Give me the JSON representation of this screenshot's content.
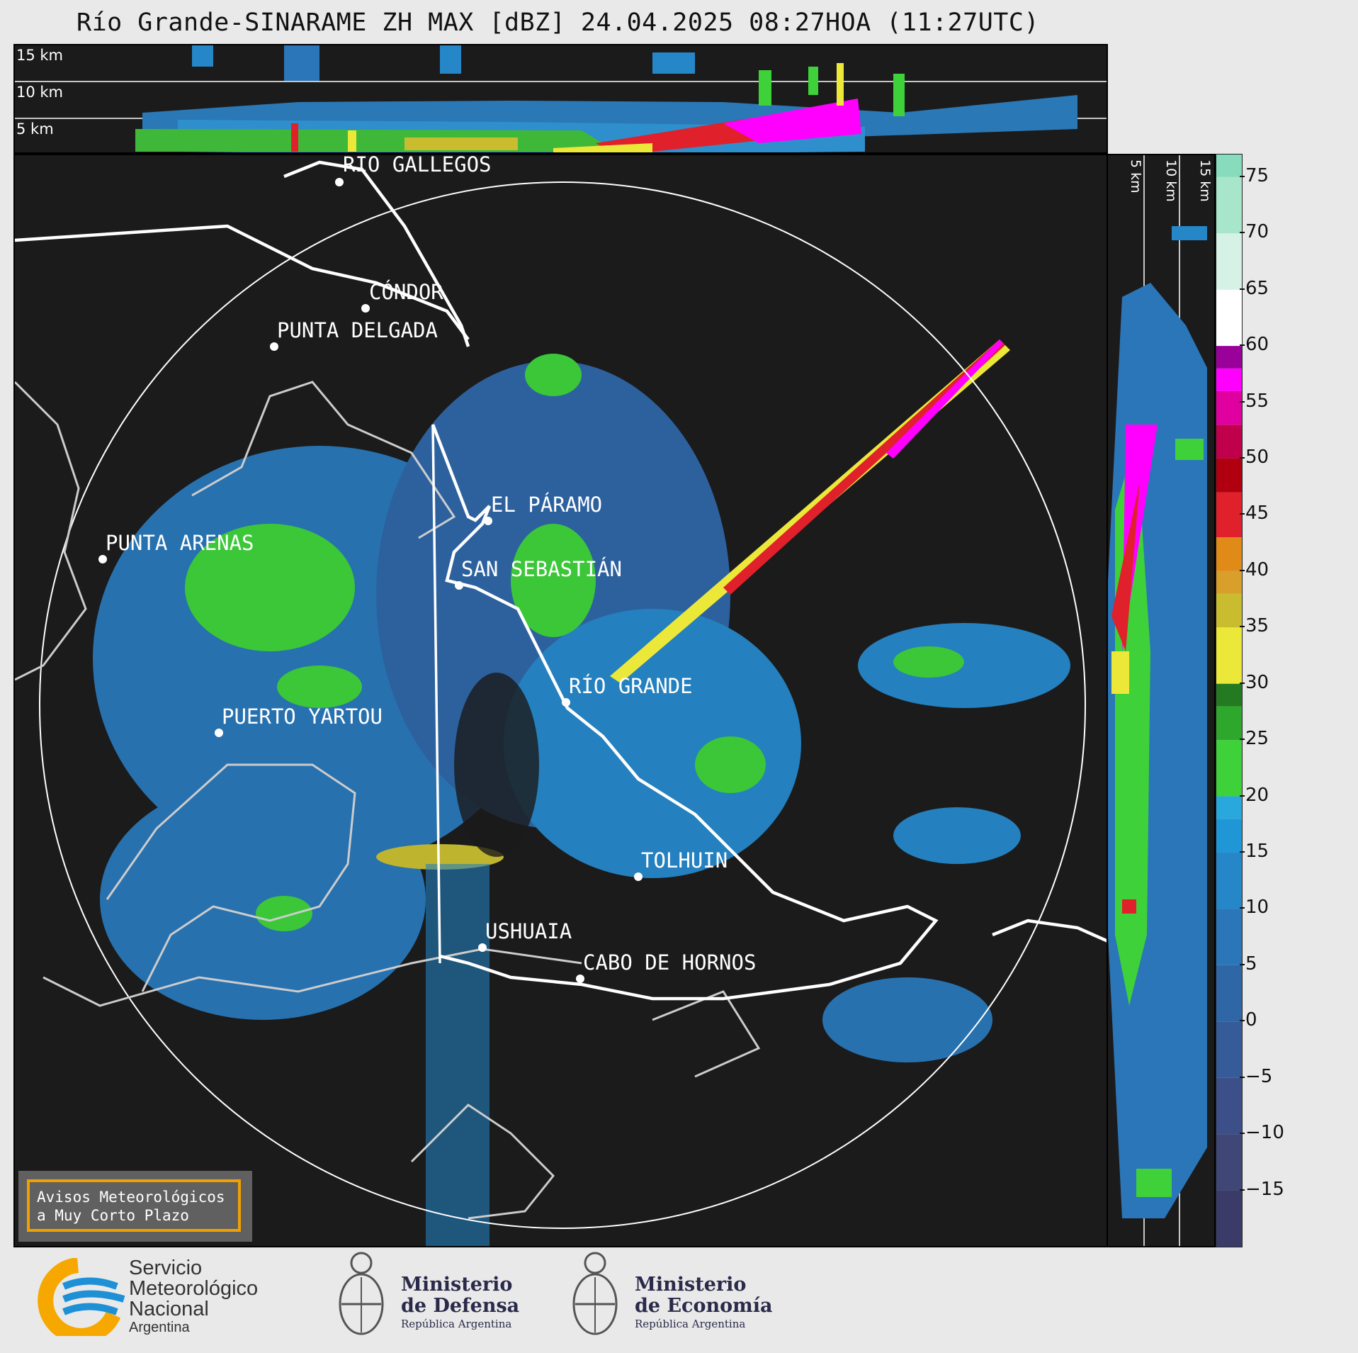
{
  "title": "Río Grande-SINARAME ZH MAX [dBZ] 24.04.2025 08:27HOA (11:27UTC)",
  "top_panel": {
    "height_labels": [
      "15 km",
      "10 km",
      "5 km"
    ]
  },
  "side_panel": {
    "height_labels": [
      "5 km",
      "10 km",
      "15 km"
    ]
  },
  "colorbar": {
    "ticks": [
      "75",
      "70",
      "65",
      "60",
      "55",
      "50",
      "45",
      "40",
      "35",
      "30",
      "25",
      "20",
      "15",
      "10",
      "5",
      "0",
      "−5",
      "−10",
      "−15"
    ],
    "colors": {
      "-20": "#3b3b6a",
      "-15": "#3f4777",
      "-10": "#3c4f88",
      "-5": "#355b98",
      "0": "#2e66a6",
      "5": "#2a76b8",
      "10": "#2586c8",
      "15": "#1f97d6",
      "18": "#29a8de",
      "20": "#3ed13a",
      "25": "#2ea82c",
      "28": "#237a21",
      "30": "#ece83a",
      "35": "#c9bd2f",
      "38": "#d8a02a",
      "40": "#e08a18",
      "43": "#e0202a",
      "47": "#b00010",
      "50": "#c0004a",
      "53": "#e000a0",
      "56": "#ff00ff",
      "58": "#9a009a",
      "60": "#ffffff",
      "65": "#d6f1e6",
      "70": "#a8e6cc",
      "75": "#86dcbd"
    }
  },
  "places": [
    {
      "name": "RÍO GALLEGOS"
    },
    {
      "name": "CÓNDOR"
    },
    {
      "name": "PUNTA DELGADA"
    },
    {
      "name": "EL PÁRAMO"
    },
    {
      "name": "PUNTA ARENAS"
    },
    {
      "name": "SAN SEBASTIÁN"
    },
    {
      "name": "RÍO GRANDE"
    },
    {
      "name": "PUERTO YARTOU"
    },
    {
      "name": "TOLHUIN"
    },
    {
      "name": "USHUAIA"
    },
    {
      "name": "CABO DE HORNOS"
    }
  ],
  "notice": {
    "line1": "Avisos Meteorológicos",
    "line2": "a Muy Corto Plazo"
  },
  "logos": {
    "smn": {
      "line1": "Servicio",
      "line2": "Meteorológico",
      "line3": "Nacional",
      "line4": "Argentina"
    },
    "defensa": {
      "line1": "Ministerio",
      "line2": "de Defensa",
      "line3": "República Argentina"
    },
    "economia": {
      "line1": "Ministerio",
      "line2": "de Economía",
      "line3": "República Argentina"
    }
  }
}
